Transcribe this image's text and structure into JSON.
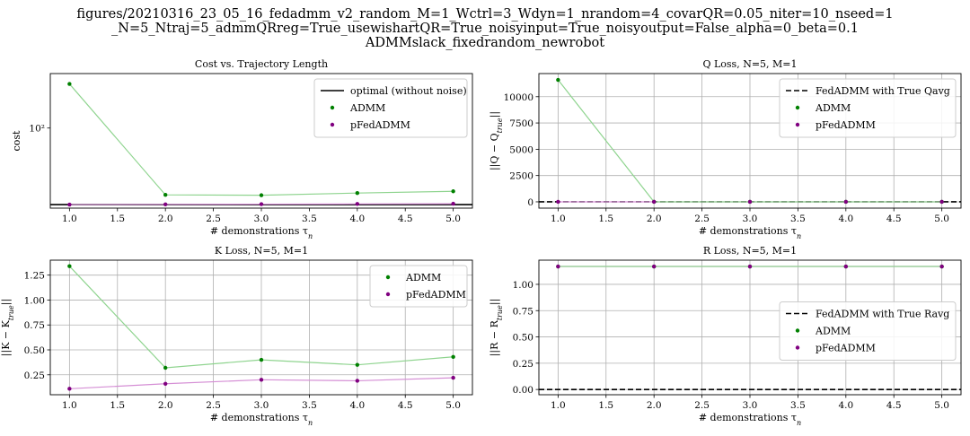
{
  "suptitle": {
    "line1": "figures/20210316_23_05_16_fedadmm_v2_random_M=1_Wctrl=3_Wdyn=1_nrandom=4_covarQR=0.05_niter=10_nseed=1",
    "line2": "_N=5_Ntraj=5_admmQRreg=True_usewishartQR=True_noisyinput=True_noisyoutput=False_alpha=0_beta=0.1",
    "line3": "ADMMslack_fixedrandom_newrobot"
  },
  "colors": {
    "admm": "#008000",
    "admm_line": "#8fd48f",
    "pfedadmm": "#800080",
    "pfedadmm_line": "#d58fd5",
    "grid": "#b0b0b0",
    "reference": "#000000"
  },
  "chart_data": [
    {
      "id": "cost",
      "type": "scatter",
      "title": "Cost vs. Trajectory Length",
      "xlabel": "# demonstrations τn",
      "ylabel": "cost",
      "xlim": [
        0.8,
        5.2
      ],
      "ylim": [
        26,
        250
      ],
      "yscale": "log",
      "xticks": [
        1.0,
        1.5,
        2.0,
        2.5,
        3.0,
        3.5,
        4.0,
        4.5,
        5.0
      ],
      "yticks": [
        100
      ],
      "ytick_labels": [
        "10²"
      ],
      "grid": false,
      "legend": "top-right",
      "reference": {
        "name": "optimal (without noise)",
        "y": 27.6,
        "style": "solid"
      },
      "x": [
        1,
        2,
        3,
        4,
        5
      ],
      "series": [
        {
          "name": "ADMM",
          "values": [
            210,
            32.5,
            32.3,
            33.5,
            34.5
          ]
        },
        {
          "name": "pFedADMM",
          "values": [
            27.6,
            27.7,
            27.8,
            27.9,
            28.0
          ]
        }
      ]
    },
    {
      "id": "q",
      "type": "scatter",
      "title": "Q Loss, N=5, M=1",
      "xlabel": "# demonstrations τn",
      "ylabel": "||Q − Qtrue||",
      "xlim": [
        0.8,
        5.2
      ],
      "ylim": [
        -600,
        12200
      ],
      "yscale": "linear",
      "xticks": [
        1.0,
        1.5,
        2.0,
        2.5,
        3.0,
        3.5,
        4.0,
        4.5,
        5.0
      ],
      "yticks": [
        0,
        2500,
        5000,
        7500,
        10000
      ],
      "ytick_labels": [
        "0",
        "2500",
        "5000",
        "7500",
        "10000"
      ],
      "grid": true,
      "legend": "top-right",
      "reference": {
        "name": "FedADMM with True Qavg",
        "y": 0,
        "style": "dashed"
      },
      "x": [
        1,
        2,
        3,
        4,
        5
      ],
      "series": [
        {
          "name": "ADMM",
          "values": [
            11600,
            0,
            0,
            0,
            0
          ]
        },
        {
          "name": "pFedADMM",
          "values": [
            0,
            0,
            0,
            0,
            0
          ]
        }
      ]
    },
    {
      "id": "k",
      "type": "scatter",
      "title": "K Loss, N=5, M=1",
      "xlabel": "# demonstrations τn",
      "ylabel": "||K − Ktrue||",
      "xlim": [
        0.8,
        5.2
      ],
      "ylim": [
        0.05,
        1.4
      ],
      "yscale": "linear",
      "xticks": [
        1.0,
        1.5,
        2.0,
        2.5,
        3.0,
        3.5,
        4.0,
        4.5,
        5.0
      ],
      "yticks": [
        0.25,
        0.5,
        0.75,
        1.0,
        1.25
      ],
      "ytick_labels": [
        "0.25",
        "0.50",
        "0.75",
        "1.00",
        "1.25"
      ],
      "grid": true,
      "legend": "top-right",
      "reference": null,
      "x": [
        1,
        2,
        3,
        4,
        5
      ],
      "series": [
        {
          "name": "ADMM",
          "values": [
            1.34,
            0.32,
            0.4,
            0.35,
            0.43
          ]
        },
        {
          "name": "pFedADMM",
          "values": [
            0.11,
            0.16,
            0.2,
            0.19,
            0.22
          ]
        }
      ]
    },
    {
      "id": "r",
      "type": "scatter",
      "title": "R Loss, N=5, M=1",
      "xlabel": "# demonstrations τn",
      "ylabel": "||R − Rtrue||",
      "xlim": [
        0.8,
        5.2
      ],
      "ylim": [
        -0.05,
        1.23
      ],
      "yscale": "linear",
      "xticks": [
        1.0,
        1.5,
        2.0,
        2.5,
        3.0,
        3.5,
        4.0,
        4.5,
        5.0
      ],
      "yticks": [
        0.0,
        0.25,
        0.5,
        0.75,
        1.0
      ],
      "ytick_labels": [
        "0.00",
        "0.25",
        "0.50",
        "0.75",
        "1.00"
      ],
      "grid": true,
      "legend": "center-right",
      "reference": {
        "name": "FedADMM with True Ravg",
        "y": 0,
        "style": "dashed"
      },
      "x": [
        1,
        2,
        3,
        4,
        5
      ],
      "series": [
        {
          "name": "ADMM",
          "values": [
            1.17,
            1.17,
            1.17,
            1.17,
            1.17
          ]
        },
        {
          "name": "pFedADMM",
          "values": [
            1.17,
            1.17,
            1.17,
            1.17,
            1.17
          ]
        }
      ]
    }
  ]
}
